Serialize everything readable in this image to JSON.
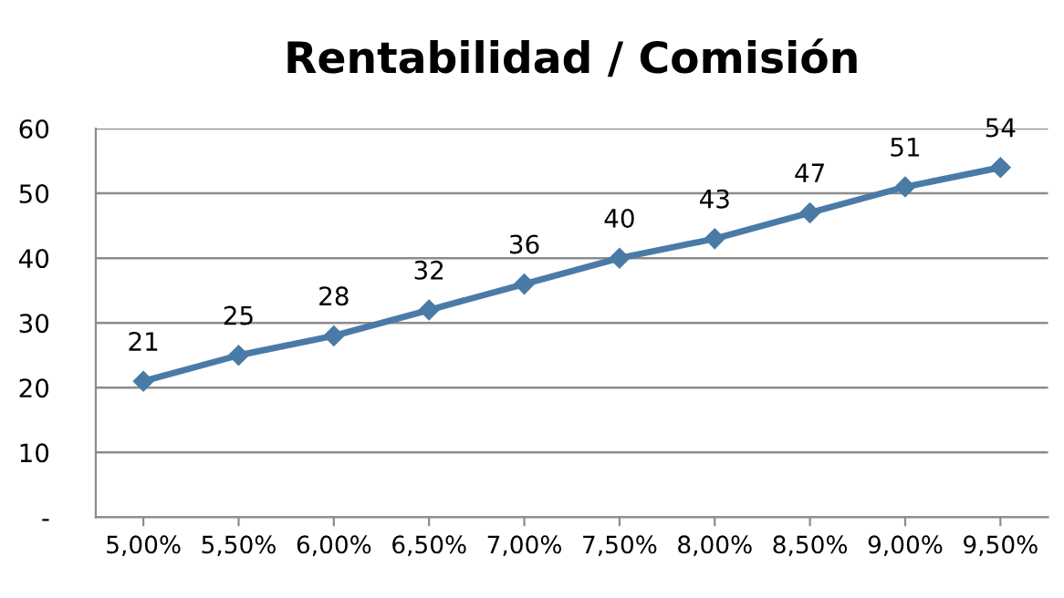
{
  "chart_data": {
    "type": "line",
    "title": "Rentabilidad / Comisión",
    "categories": [
      "5,00%",
      "5,50%",
      "6,00%",
      "6,50%",
      "7,00%",
      "7,50%",
      "8,00%",
      "8,50%",
      "9,00%",
      "9,50%"
    ],
    "series": [
      {
        "color": "#4a7ba6",
        "values": [
          21,
          25,
          28,
          32,
          36,
          40,
          43,
          47,
          51,
          54
        ]
      }
    ],
    "ylim": [
      0,
      60
    ],
    "yticks": [
      {
        "value": 0,
        "label": "-"
      },
      10,
      20,
      30,
      40,
      50,
      60
    ],
    "grid": "y",
    "marker": "diamond",
    "line_style": "solid",
    "data_labels": true,
    "legend": false
  }
}
